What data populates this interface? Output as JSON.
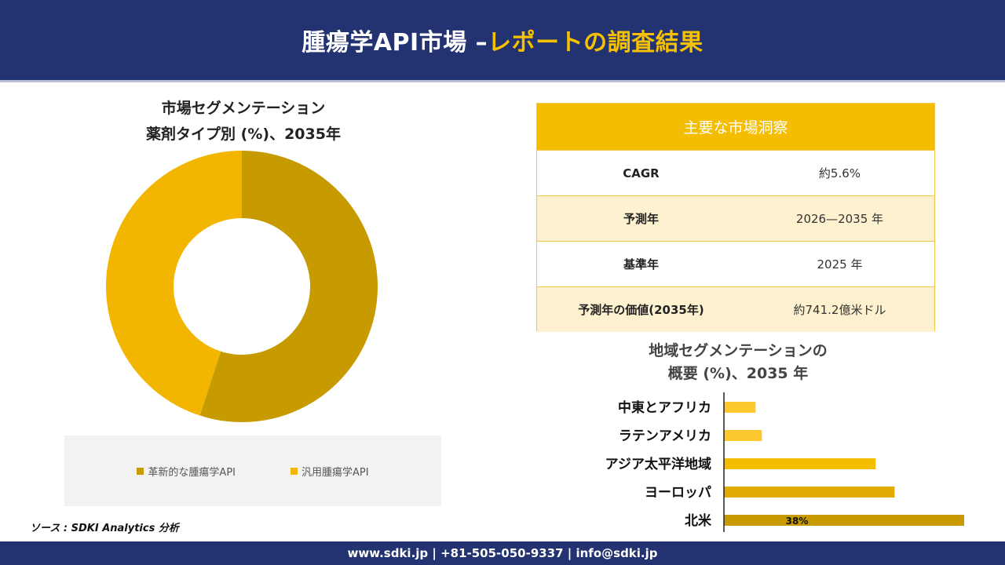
{
  "header": {
    "title_main": "腫瘍学API市場",
    "title_sep": " –",
    "title_accent": "レポートの調査結果"
  },
  "donut": {
    "title_line1": "市場セグメンテーション",
    "title_line2": "薬剤タイプ別 (%)、2035年"
  },
  "source": "ソース : SDKI Analytics 分析",
  "insights": {
    "heading": "主要な市場洞察",
    "rows": [
      {
        "label": "CAGR",
        "value": "約5.6%"
      },
      {
        "label": "予測年",
        "value": "2026—2035 年"
      },
      {
        "label": "基準年",
        "value": "2025 年"
      },
      {
        "label": "予測年の価値(2035年)",
        "value": "約741.2億米ドル"
      }
    ]
  },
  "bars": {
    "title_line1": "地域セグメンテーションの",
    "title_line2": "概要 (%)、2035 年"
  },
  "footer": "www.sdki.jp | +81-505-050-9337 | info@sdki.jp",
  "chart_data": [
    {
      "type": "pie",
      "variant": "donut",
      "categories": [
        "革新的な腫瘍学API",
        "汎用腫瘍学API"
      ],
      "values": [
        55,
        45
      ],
      "colors": [
        "#c79a00",
        "#f2b600"
      ],
      "legend": "bottom"
    },
    {
      "type": "bar",
      "orientation": "horizontal",
      "categories": [
        "中東とアフリカ",
        "ラテンアメリカ",
        "アジア太平洋地域",
        "ヨーロッパ",
        "北米"
      ],
      "values": [
        5,
        6,
        24,
        27,
        38
      ],
      "data_labels": [
        "",
        "",
        "",
        "",
        "38%"
      ],
      "colors": [
        "#fcc82e",
        "#fcc82e",
        "#f5bd00",
        "#e1ab00",
        "#c79a00"
      ],
      "xlim": [
        0,
        38
      ]
    }
  ]
}
